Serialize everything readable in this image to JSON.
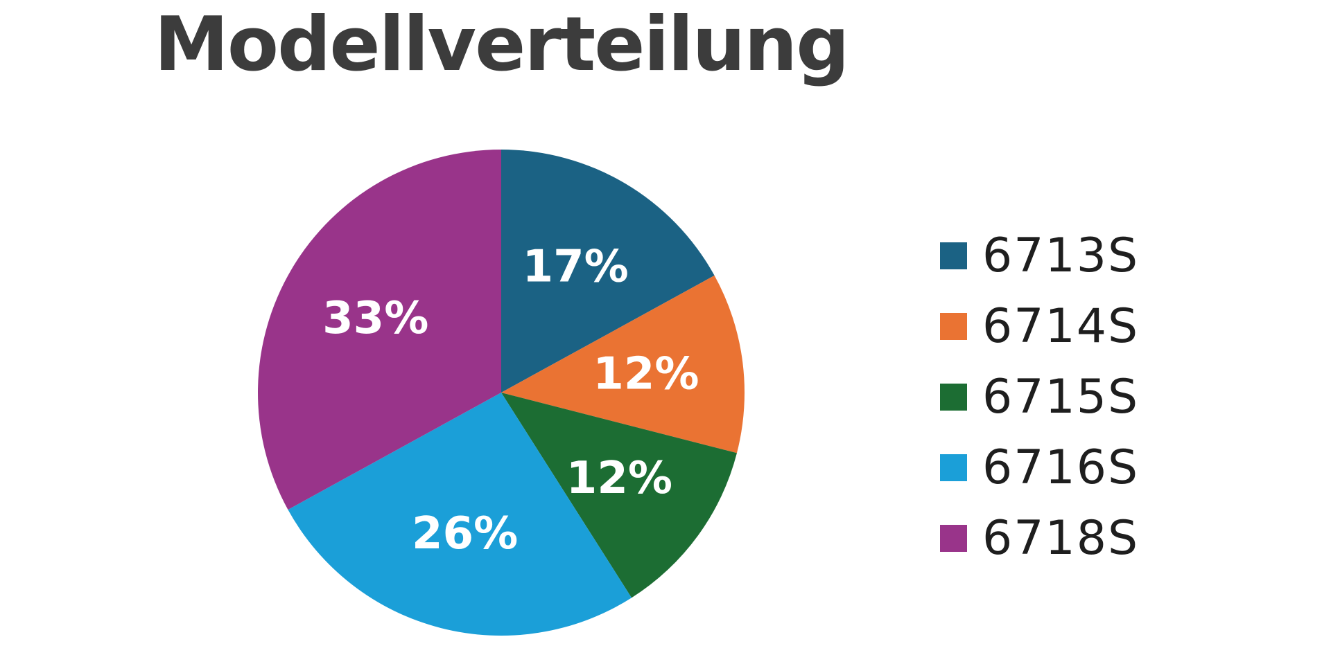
{
  "chart_data": {
    "type": "pie",
    "title": "Modellverteilung",
    "categories": [
      "6713S",
      "6714S",
      "6715S",
      "6716S",
      "6718S"
    ],
    "values": [
      17,
      12,
      12,
      26,
      33
    ],
    "labels": [
      "17%",
      "12%",
      "12%",
      "26%",
      "33%"
    ],
    "colors": [
      "#1b6284",
      "#ea7333",
      "#1c6d33",
      "#1b9fd8",
      "#99348a"
    ],
    "start_angle": "top",
    "direction": "clockwise",
    "legend_position": "right"
  }
}
